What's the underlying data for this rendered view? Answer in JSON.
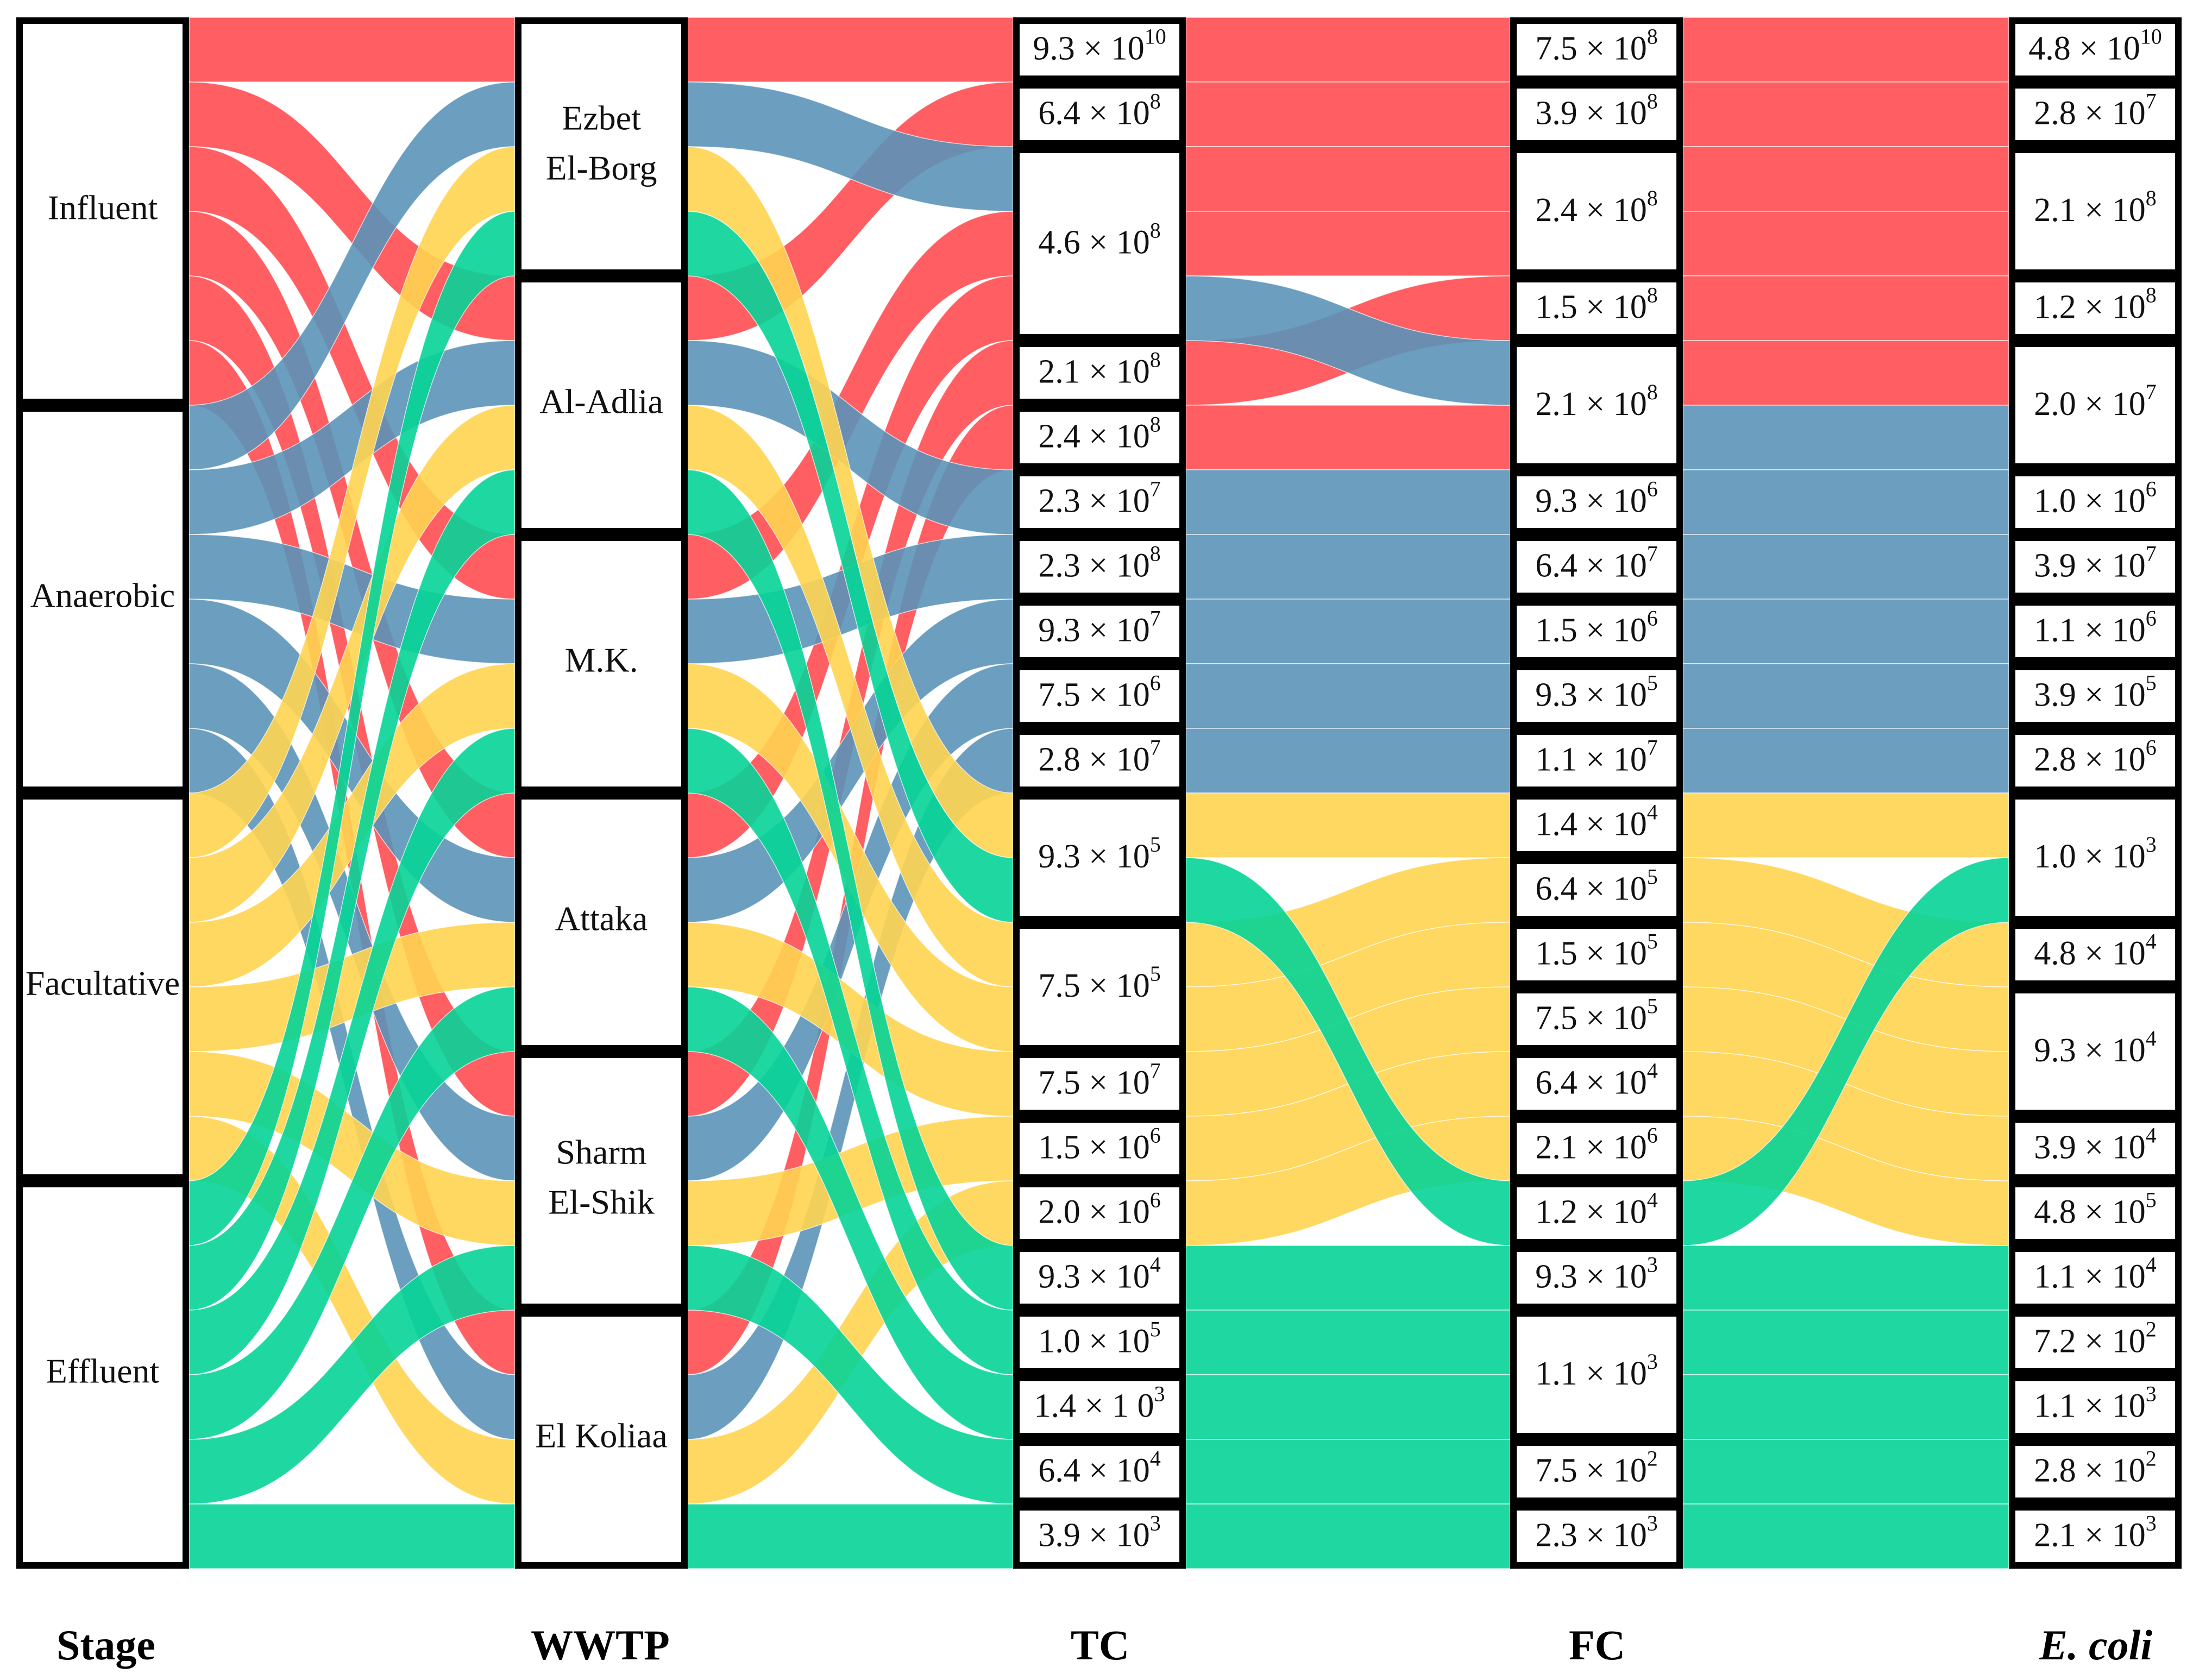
{
  "colors": {
    "Influent": "#ff4d52",
    "Anaerobic": "#5b93b8",
    "Facultative": "#ffd451",
    "Effluent": "#07d497"
  },
  "headers": {
    "stage": "Stage",
    "wwtp": "WWTP",
    "tc": "TC",
    "fc": "FC",
    "ecoli": "E. coli"
  },
  "stages": [
    "Influent",
    "Anaerobic",
    "Facultative",
    "Effluent"
  ],
  "wwtps": [
    {
      "lines": [
        "Ezbet",
        "El-Borg"
      ]
    },
    {
      "lines": [
        "Al-Adlia"
      ]
    },
    {
      "lines": [
        "M.K."
      ]
    },
    {
      "lines": [
        "Attaka"
      ]
    },
    {
      "lines": [
        "Sharm",
        "El-Shik"
      ]
    },
    {
      "lines": [
        "El Koliaa"
      ]
    }
  ],
  "tc": [
    {
      "m": "9.3",
      "e": "10",
      "w": 1
    },
    {
      "m": "6.4",
      "e": "8",
      "w": 1
    },
    {
      "m": "4.6",
      "e": "8",
      "w": 3
    },
    {
      "m": "2.1",
      "e": "8",
      "w": 1
    },
    {
      "m": "2.4",
      "e": "8",
      "w": 1
    },
    {
      "m": "2.3",
      "e": "7",
      "w": 1
    },
    {
      "m": "2.3",
      "e": "8",
      "w": 1
    },
    {
      "m": "9.3",
      "e": "7",
      "w": 1
    },
    {
      "m": "7.5",
      "e": "6",
      "w": 1
    },
    {
      "m": "2.8",
      "e": "7",
      "w": 1
    },
    {
      "m": "9.3",
      "e": "5",
      "w": 2
    },
    {
      "m": "7.5",
      "e": "5",
      "w": 2
    },
    {
      "m": "7.5",
      "e": "7",
      "w": 1
    },
    {
      "m": "1.5",
      "e": "6",
      "w": 1
    },
    {
      "m": "2.0",
      "e": "6",
      "w": 1
    },
    {
      "m": "9.3",
      "e": "4",
      "w": 1
    },
    {
      "m": "1.0",
      "e": "5",
      "w": 1
    },
    {
      "m": "1.4",
      "e": "3",
      "w": 1,
      "raw": "1.4 × 1 0"
    },
    {
      "m": "6.4",
      "e": "4",
      "w": 1
    },
    {
      "m": "3.9",
      "e": "3",
      "w": 1
    }
  ],
  "fc": [
    {
      "m": "7.5",
      "e": "8",
      "w": 1
    },
    {
      "m": "3.9",
      "e": "8",
      "w": 1
    },
    {
      "m": "2.4",
      "e": "8",
      "w": 2
    },
    {
      "m": "1.5",
      "e": "8",
      "w": 1
    },
    {
      "m": "2.1",
      "e": "8",
      "w": 2
    },
    {
      "m": "9.3",
      "e": "6",
      "w": 1
    },
    {
      "m": "6.4",
      "e": "7",
      "w": 1
    },
    {
      "m": "1.5",
      "e": "6",
      "w": 1
    },
    {
      "m": "9.3",
      "e": "5",
      "w": 1
    },
    {
      "m": "1.1",
      "e": "7",
      "w": 1
    },
    {
      "m": "1.4",
      "e": "4",
      "w": 1
    },
    {
      "m": "6.4",
      "e": "5",
      "w": 1
    },
    {
      "m": "1.5",
      "e": "5",
      "w": 1
    },
    {
      "m": "7.5",
      "e": "5",
      "w": 1
    },
    {
      "m": "6.4",
      "e": "4",
      "w": 1
    },
    {
      "m": "2.1",
      "e": "6",
      "w": 1
    },
    {
      "m": "1.2",
      "e": "4",
      "w": 1
    },
    {
      "m": "9.3",
      "e": "3",
      "w": 1
    },
    {
      "m": "1.1",
      "e": "3",
      "w": 2
    },
    {
      "m": "7.5",
      "e": "2",
      "w": 1
    },
    {
      "m": "2.3",
      "e": "3",
      "w": 1
    }
  ],
  "ecoli": [
    {
      "m": "4.8",
      "e": "10",
      "w": 1
    },
    {
      "m": "2.8",
      "e": "7",
      "w": 1
    },
    {
      "m": "2.1",
      "e": "8",
      "w": 2
    },
    {
      "m": "1.2",
      "e": "8",
      "w": 1
    },
    {
      "m": "2.0",
      "e": "7",
      "w": 2
    },
    {
      "m": "1.0",
      "e": "6",
      "w": 1
    },
    {
      "m": "3.9",
      "e": "7",
      "w": 1
    },
    {
      "m": "1.1",
      "e": "6",
      "w": 1
    },
    {
      "m": "3.9",
      "e": "5",
      "w": 1
    },
    {
      "m": "2.8",
      "e": "6",
      "w": 1
    },
    {
      "m": "1.0",
      "e": "3",
      "w": 2
    },
    {
      "m": "4.8",
      "e": "4",
      "w": 1
    },
    {
      "m": "9.3",
      "e": "4",
      "w": 2
    },
    {
      "m": "3.9",
      "e": "4",
      "w": 1
    },
    {
      "m": "4.8",
      "e": "5",
      "w": 1
    },
    {
      "m": "1.1",
      "e": "4",
      "w": 1
    },
    {
      "m": "7.2",
      "e": "2",
      "w": 1
    },
    {
      "m": "1.1",
      "e": "3",
      "w": 1
    },
    {
      "m": "2.8",
      "e": "2",
      "w": 1
    },
    {
      "m": "2.1",
      "e": "3",
      "w": 1
    }
  ],
  "samples": [
    {
      "stage": 0,
      "wwtp": 0,
      "tc": 0,
      "fc": 0,
      "ec": 0
    },
    {
      "stage": 0,
      "wwtp": 1,
      "tc": 1,
      "fc": 1,
      "ec": 1
    },
    {
      "stage": 0,
      "wwtp": 2,
      "tc": 2,
      "fc": 2,
      "ec": 2
    },
    {
      "stage": 0,
      "wwtp": 3,
      "tc": 2,
      "fc": 2,
      "ec": 2
    },
    {
      "stage": 0,
      "wwtp": 4,
      "tc": 3,
      "fc": 3,
      "ec": 3
    },
    {
      "stage": 0,
      "wwtp": 5,
      "tc": 4,
      "fc": 4,
      "ec": 4
    },
    {
      "stage": 1,
      "wwtp": 0,
      "tc": 2,
      "fc": 4,
      "ec": 4
    },
    {
      "stage": 1,
      "wwtp": 1,
      "tc": 5,
      "fc": 5,
      "ec": 5
    },
    {
      "stage": 1,
      "wwtp": 2,
      "tc": 6,
      "fc": 6,
      "ec": 6
    },
    {
      "stage": 1,
      "wwtp": 3,
      "tc": 7,
      "fc": 7,
      "ec": 7
    },
    {
      "stage": 1,
      "wwtp": 4,
      "tc": 8,
      "fc": 8,
      "ec": 8
    },
    {
      "stage": 1,
      "wwtp": 5,
      "tc": 9,
      "fc": 9,
      "ec": 9
    },
    {
      "stage": 2,
      "wwtp": 0,
      "tc": 10,
      "fc": 10,
      "ec": 10
    },
    {
      "stage": 2,
      "wwtp": 1,
      "tc": 11,
      "fc": 11,
      "ec": 11
    },
    {
      "stage": 2,
      "wwtp": 2,
      "tc": 11,
      "fc": 12,
      "ec": 12
    },
    {
      "stage": 2,
      "wwtp": 3,
      "tc": 12,
      "fc": 13,
      "ec": 12
    },
    {
      "stage": 2,
      "wwtp": 4,
      "tc": 13,
      "fc": 14,
      "ec": 13
    },
    {
      "stage": 2,
      "wwtp": 5,
      "tc": 14,
      "fc": 15,
      "ec": 14
    },
    {
      "stage": 3,
      "wwtp": 0,
      "tc": 10,
      "fc": 16,
      "ec": 10
    },
    {
      "stage": 3,
      "wwtp": 1,
      "tc": 15,
      "fc": 17,
      "ec": 15
    },
    {
      "stage": 3,
      "wwtp": 2,
      "tc": 16,
      "fc": 18,
      "ec": 16
    },
    {
      "stage": 3,
      "wwtp": 3,
      "tc": 17,
      "fc": 18,
      "ec": 17
    },
    {
      "stage": 3,
      "wwtp": 4,
      "tc": 18,
      "fc": 19,
      "ec": 18
    },
    {
      "stage": 3,
      "wwtp": 5,
      "tc": 19,
      "fc": 20,
      "ec": 19
    }
  ]
}
